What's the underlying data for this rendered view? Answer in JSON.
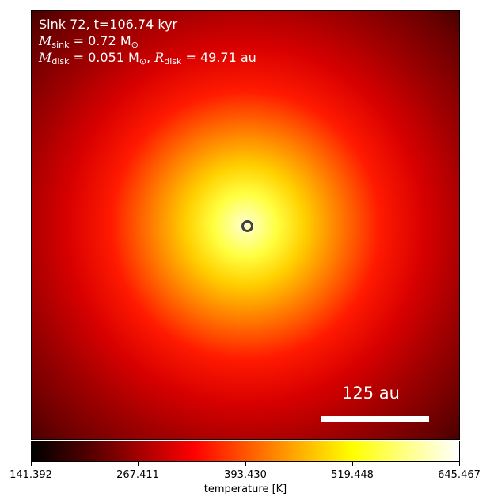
{
  "annotation": {
    "line1": "Sink 72, t=106.74 kyr",
    "mass_sink_symbol": "M",
    "mass_sink_sub": "sink",
    "mass_sink_value": "= 0.72 M",
    "mass_sink_sun_sub": "⊙",
    "mass_disk_symbol": "M",
    "mass_disk_sub": "disk",
    "mass_disk_value": "= 0.051 M",
    "mass_disk_sun_sub": "⊙",
    "radius_symbol": "R",
    "radius_sub": "disk",
    "radius_value": "= 49.71 au"
  },
  "scale_bar": {
    "label": "125 au",
    "length_au": 125
  },
  "colorbar": {
    "label": "temperature [K]",
    "colormap": "hot",
    "range": [
      141.392,
      645.467
    ],
    "ticks": [
      "141.392",
      "267.411",
      "393.430",
      "519.448",
      "645.467"
    ]
  },
  "colors": {
    "marker": "#404040",
    "text": "#ffffff"
  }
}
